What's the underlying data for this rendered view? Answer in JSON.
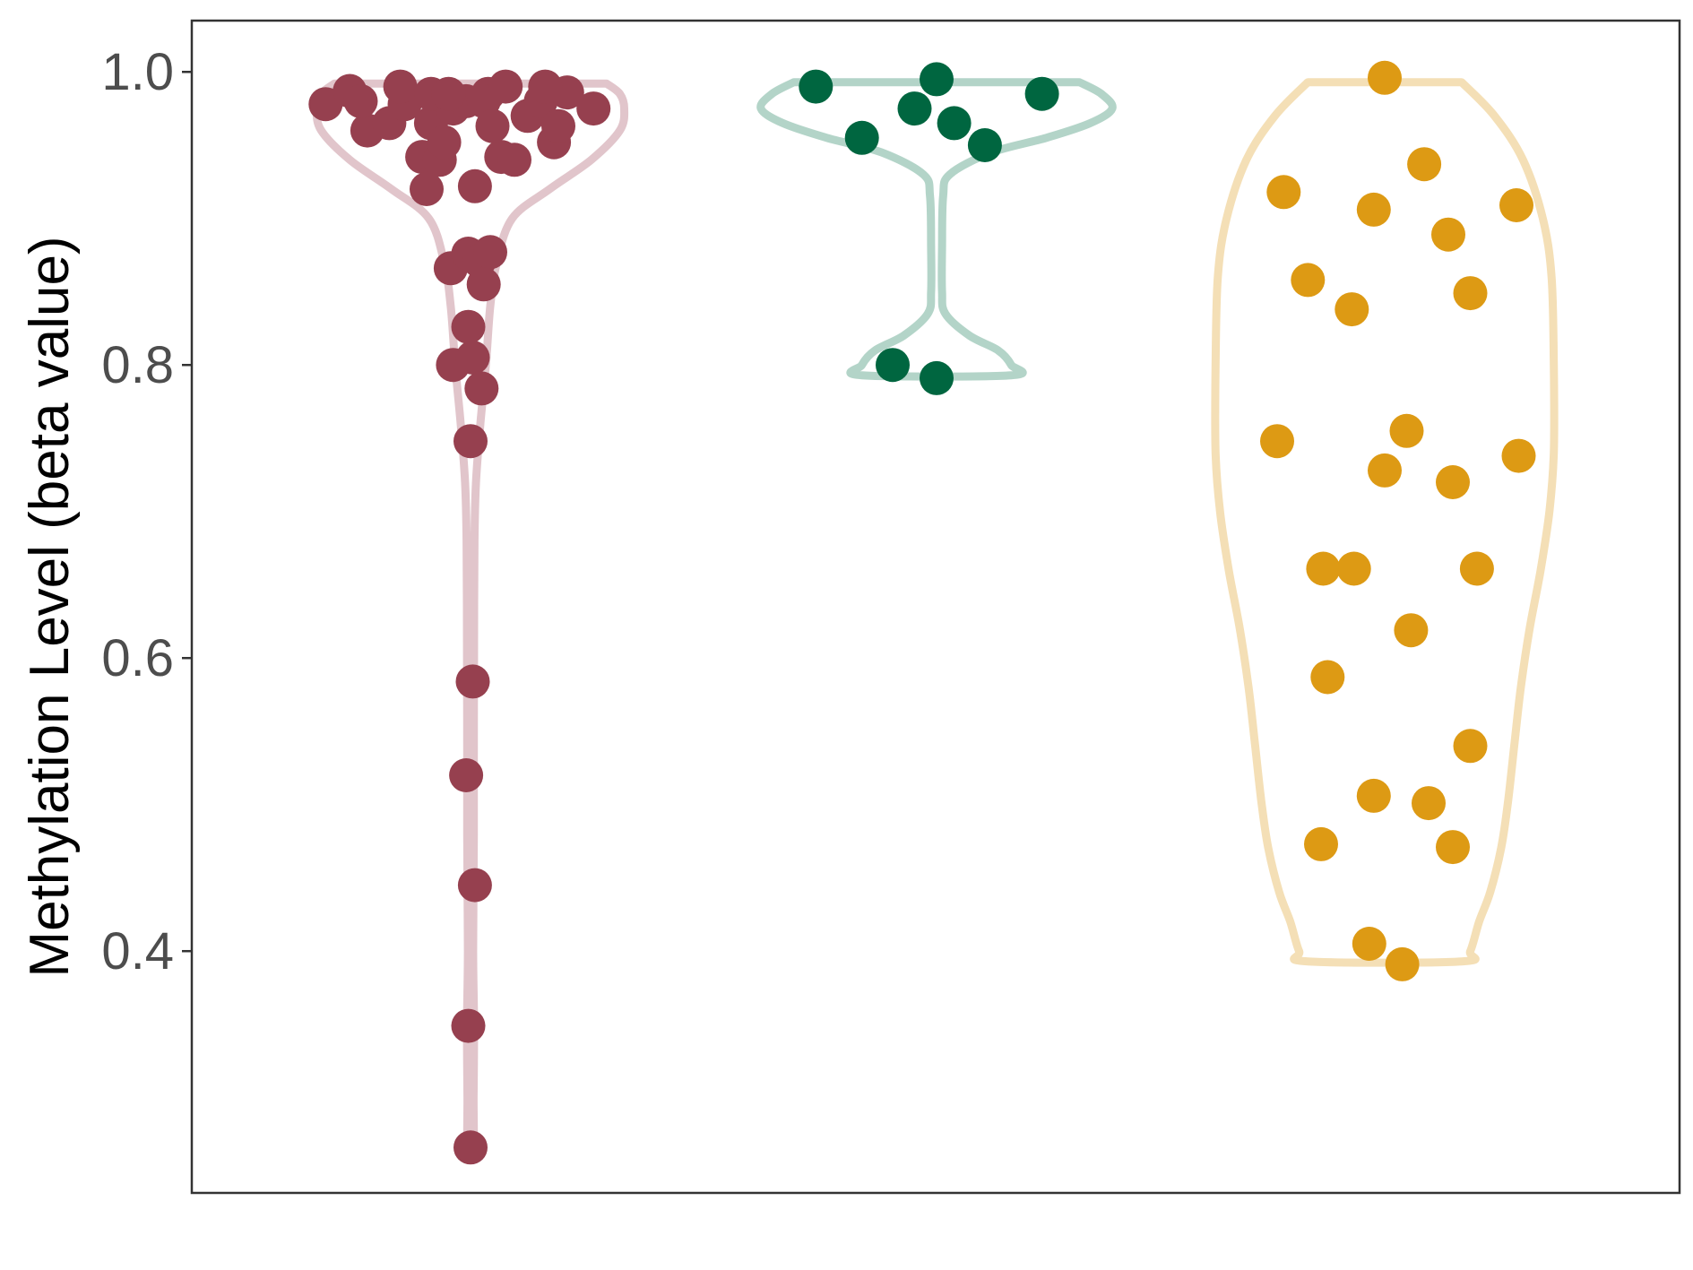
{
  "chart_data": {
    "type": "violin",
    "title": "",
    "xlabel": "",
    "ylabel": "Methylation Level (beta value)",
    "ylim": [
      0.235,
      1.035
    ],
    "yticks": [
      0.4,
      0.6,
      0.8,
      1.0
    ],
    "ytick_labels": [
      "0.4",
      "0.6",
      "0.8",
      "1.0"
    ],
    "grid": false,
    "legend": "none",
    "series": [
      {
        "color": "#96404f",
        "outline_color": "#e1c5cb",
        "points": [
          [
            -0.66,
            0.978
          ],
          [
            -0.55,
            0.987
          ],
          [
            -0.47,
            0.96
          ],
          [
            -0.37,
            0.965
          ],
          [
            -0.3,
            0.978
          ],
          [
            -0.22,
            0.942
          ],
          [
            -0.18,
            0.965
          ],
          [
            -0.14,
            0.94
          ],
          [
            -0.08,
            0.975
          ],
          [
            -0.02,
            0.98
          ],
          [
            0.08,
            0.985
          ],
          [
            0.14,
            0.942
          ],
          [
            0.2,
            0.94
          ],
          [
            0.26,
            0.97
          ],
          [
            0.32,
            0.98
          ],
          [
            0.38,
            0.952
          ],
          [
            0.44,
            0.986
          ],
          [
            0.56,
            0.975
          ],
          [
            -0.5,
            0.98
          ],
          [
            -0.32,
            0.99
          ],
          [
            -0.18,
            0.985
          ],
          [
            -0.1,
            0.985
          ],
          [
            0.06,
            0.98
          ],
          [
            0.16,
            0.99
          ],
          [
            0.34,
            0.99
          ],
          [
            0.4,
            0.963
          ],
          [
            -0.2,
            0.92
          ],
          [
            0.02,
            0.922
          ],
          [
            -0.12,
            0.952
          ],
          [
            0.1,
            0.963
          ],
          [
            -0.09,
            0.866
          ],
          [
            -0.01,
            0.876
          ],
          [
            0.04,
            0.871
          ],
          [
            0.09,
            0.877
          ],
          [
            0.06,
            0.855
          ],
          [
            -0.01,
            0.826
          ],
          [
            -0.08,
            0.8
          ],
          [
            0.01,
            0.805
          ],
          [
            0.05,
            0.784
          ],
          [
            0.0,
            0.748
          ],
          [
            0.01,
            0.584
          ],
          [
            -0.02,
            0.52
          ],
          [
            0.02,
            0.445
          ],
          [
            -0.01,
            0.349
          ],
          [
            0.0,
            0.266
          ]
        ],
        "density": [
          [
            0.992,
            0.62
          ],
          [
            0.985,
            0.68
          ],
          [
            0.975,
            0.7
          ],
          [
            0.96,
            0.68
          ],
          [
            0.94,
            0.55
          ],
          [
            0.92,
            0.36
          ],
          [
            0.9,
            0.19
          ],
          [
            0.87,
            0.12
          ],
          [
            0.84,
            0.09
          ],
          [
            0.8,
            0.07
          ],
          [
            0.76,
            0.045
          ],
          [
            0.72,
            0.025
          ],
          [
            0.68,
            0.018
          ],
          [
            0.6,
            0.016
          ],
          [
            0.54,
            0.015
          ],
          [
            0.48,
            0.015
          ],
          [
            0.4,
            0.012
          ],
          [
            0.35,
            0.016
          ],
          [
            0.3,
            0.014
          ],
          [
            0.266,
            0.013
          ]
        ]
      },
      {
        "color": "#006640",
        "outline_color": "#b3d4c8",
        "points": [
          [
            -0.55,
            0.99
          ],
          [
            -0.34,
            0.955
          ],
          [
            -0.1,
            0.975
          ],
          [
            0.0,
            0.995
          ],
          [
            0.08,
            0.965
          ],
          [
            0.22,
            0.95
          ],
          [
            0.48,
            0.985
          ],
          [
            -0.2,
            0.8
          ],
          [
            0.0,
            0.791
          ]
        ],
        "density": [
          [
            0.993,
            0.65
          ],
          [
            0.985,
            0.75
          ],
          [
            0.975,
            0.8
          ],
          [
            0.965,
            0.7
          ],
          [
            0.955,
            0.5
          ],
          [
            0.945,
            0.25
          ],
          [
            0.93,
            0.06
          ],
          [
            0.915,
            0.03
          ],
          [
            0.88,
            0.025
          ],
          [
            0.85,
            0.025
          ],
          [
            0.835,
            0.04
          ],
          [
            0.82,
            0.15
          ],
          [
            0.81,
            0.28
          ],
          [
            0.8,
            0.34
          ],
          [
            0.793,
            0.34
          ]
        ]
      },
      {
        "color": "#dd9a14",
        "outline_color": "#f4dfb6",
        "points": [
          [
            0.0,
            0.996
          ],
          [
            0.18,
            0.937
          ],
          [
            -0.46,
            0.918
          ],
          [
            -0.05,
            0.906
          ],
          [
            0.6,
            0.909
          ],
          [
            0.29,
            0.889
          ],
          [
            -0.35,
            0.858
          ],
          [
            -0.15,
            0.838
          ],
          [
            0.39,
            0.849
          ],
          [
            -0.49,
            0.748
          ],
          [
            0.1,
            0.755
          ],
          [
            0.0,
            0.728
          ],
          [
            0.31,
            0.72
          ],
          [
            0.61,
            0.738
          ],
          [
            -0.28,
            0.661
          ],
          [
            -0.14,
            0.661
          ],
          [
            0.42,
            0.661
          ],
          [
            0.12,
            0.619
          ],
          [
            -0.26,
            0.587
          ],
          [
            0.39,
            0.54
          ],
          [
            -0.05,
            0.506
          ],
          [
            0.2,
            0.501
          ],
          [
            -0.29,
            0.473
          ],
          [
            0.31,
            0.471
          ],
          [
            -0.07,
            0.405
          ],
          [
            0.08,
            0.391
          ]
        ],
        "density": [
          [
            0.993,
            0.35
          ],
          [
            0.97,
            0.5
          ],
          [
            0.94,
            0.63
          ],
          [
            0.9,
            0.72
          ],
          [
            0.86,
            0.76
          ],
          [
            0.8,
            0.77
          ],
          [
            0.74,
            0.77
          ],
          [
            0.7,
            0.75
          ],
          [
            0.66,
            0.71
          ],
          [
            0.62,
            0.66
          ],
          [
            0.58,
            0.62
          ],
          [
            0.54,
            0.59
          ],
          [
            0.5,
            0.56
          ],
          [
            0.47,
            0.53
          ],
          [
            0.44,
            0.48
          ],
          [
            0.42,
            0.43
          ],
          [
            0.4,
            0.39
          ],
          [
            0.393,
            0.35
          ]
        ]
      }
    ]
  }
}
